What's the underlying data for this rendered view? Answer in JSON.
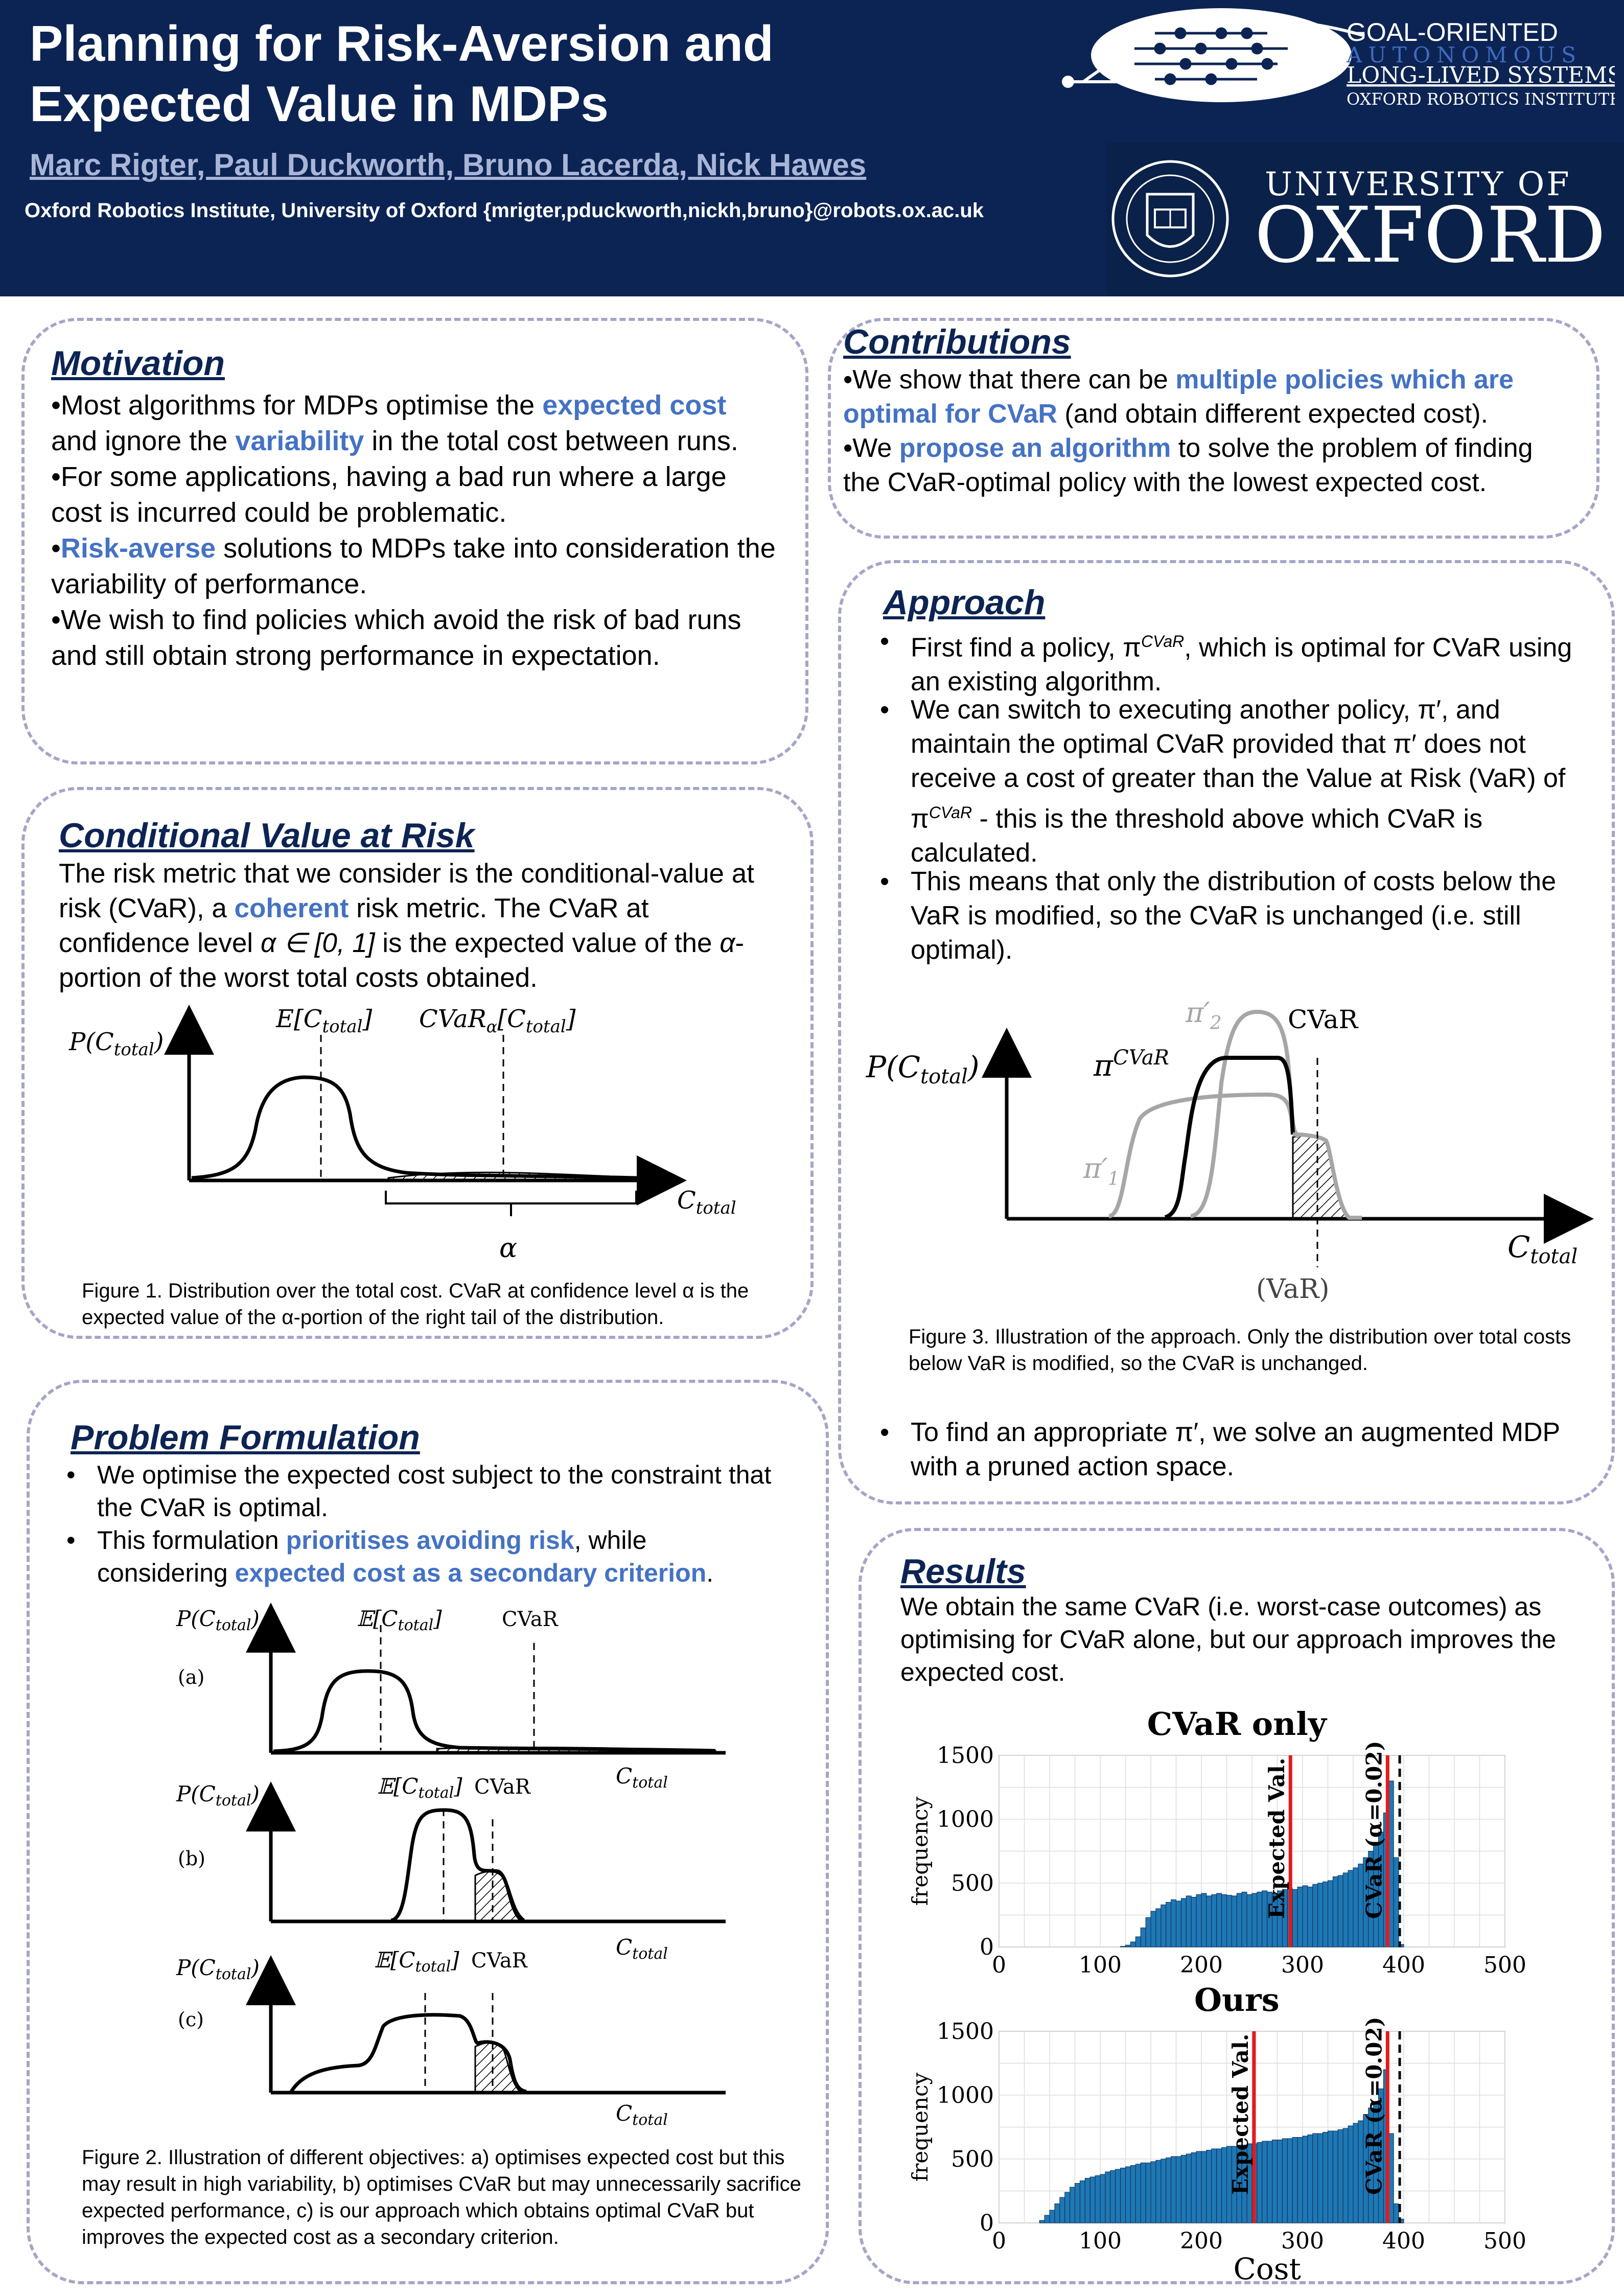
{
  "header": {
    "title": "Planning for Risk-Aversion and Expected Value in MDPs",
    "authors": "Marc Rigter, Paul Duckworth, Bruno Lacerda, Nick Hawes",
    "affiliation": "Oxford Robotics Institute, University of Oxford {mrigter,pduckworth,nickh,bruno}@robots.ox.ac.uk",
    "goal_logo": {
      "line1": "GOAL-ORIENTED",
      "line2": "AUTONOMOUS",
      "line3": "LONG-LIVED SYSTEMS",
      "line4": "OXFORD ROBOTICS INSTITUTE"
    },
    "oxford_logo": {
      "line1": "UNIVERSITY OF",
      "line2": "OXFORD"
    }
  },
  "motivation": {
    "heading": "Motivation",
    "b1": {
      "pre": "Most algorithms for MDPs optimise the ",
      "hl1": "expected cost",
      "mid": " and ignore the ",
      "hl2": "variability",
      "post": " in the total cost between runs."
    },
    "b2": "For some applications, having a bad run where a large cost is incurred could be problematic.",
    "b3": {
      "hl": "Risk-averse",
      "post": " solutions to MDPs take into consideration the variability of performance."
    },
    "b4": "We wish to find policies which avoid the risk of bad runs and still obtain strong performance in expectation."
  },
  "cvar": {
    "heading": "Conditional Value at Risk",
    "p1": "The risk metric that we consider is the conditional-value at risk (CVaR), a ",
    "hl": "coherent",
    "p2": " risk metric. The CVaR at confidence level ",
    "p3": "α ∈ [0, 1]",
    "p4": " is the expected value of the ",
    "p5": "α",
    "p6": "-portion of the worst total costs obtained.",
    "fig_ylabel": "P(C",
    "fig_ylabel_sub": "total",
    "fig_e": "E[C",
    "fig_cvar": "CVaR",
    "fig_cvar_sub": "α",
    "fig_xlabel": "C",
    "fig_alpha": "α",
    "caption": "Figure 1. Distribution over the total cost. CVaR at confidence level α is the expected value of the α-portion of the right tail of the distribution."
  },
  "problem": {
    "heading": "Problem Formulation",
    "b1": "We optimise the expected cost subject to the constraint that the CVaR is optimal.",
    "b2": {
      "pre": "This formulation ",
      "hl1": "prioritises avoiding risk",
      "mid": ", while considering ",
      "hl2": "expected cost as a secondary criterion",
      "post": "."
    },
    "fig_a": "(a)",
    "fig_b": "(b)",
    "fig_c": "(c)",
    "fig_ylabel": "P(C",
    "fig_e": "𝔼[C",
    "fig_sub": "total",
    "fig_cvar": "CVaR",
    "fig_xlabel": "C",
    "caption": "Figure 2. Illustration of different objectives: a) optimises expected cost but this may result in high variability, b) optimises CVaR but may unnecessarily sacrifice expected performance, c) is our approach which obtains optimal CVaR but improves the expected cost as a secondary criterion."
  },
  "contributions": {
    "heading": "Contributions",
    "b1": {
      "pre": "We show that there can be ",
      "hl": "multiple policies which are optimal for CVaR",
      "post": " (and obtain different expected cost)."
    },
    "b2": {
      "pre": "We ",
      "hl": "propose an algorithm",
      "post": " to solve the problem of finding the CVaR-optimal policy with the lowest expected cost."
    }
  },
  "approach": {
    "heading": "Approach",
    "b1a": "First find a policy, π",
    "b1sup": "CVaR",
    "b1b": ", which is optimal for CVaR using an existing algorithm.",
    "b2a": "We can switch to executing another policy, π′, and maintain the optimal CVaR provided that π′ does not receive a cost of greater than the Value at Risk (VaR) of π",
    "b2sup": "CVaR",
    "b2b": " - this is the threshold above which CVaR is calculated.",
    "b3": "This means that only the distribution of costs below the VaR is modified, so the CVaR is unchanged (i.e. still optimal).",
    "fig_ylabel": "P(C",
    "fig_sub": "total",
    "fig_pi2": "π′",
    "fig_pi2_sub": "2",
    "fig_pi1": "π′",
    "fig_pi1_sub": "1",
    "fig_picvar": "π",
    "fig_picvar_sup": "CVaR",
    "fig_cvar": "CVaR",
    "fig_var": "(VaR)",
    "fig_xlabel": "C",
    "caption": "Figure 3. Illustration of the approach. Only the distribution over total costs below VaR is modified, so the CVaR is unchanged.",
    "b4": "To find an appropriate π′, we solve an augmented MDP with a pruned action space."
  },
  "results": {
    "heading": "Results",
    "text": "We obtain the same CVaR (i.e. worst-case outcomes) as optimising for CVaR alone, but our approach improves the expected cost.",
    "xlabel": "Cost",
    "ylabel": "frequency",
    "label_expected": "Expected Val.",
    "label_cvar": "CVaR (α=0.02)",
    "ytick_labels": [
      "0",
      "500",
      "1000",
      "1500"
    ],
    "xtick_labels": [
      "0",
      "100",
      "200",
      "300",
      "400",
      "500"
    ]
  },
  "chart_data": [
    {
      "type": "bar",
      "title": "CVaR only",
      "xlabel": "",
      "ylabel": "frequency",
      "xlim": [
        0,
        500
      ],
      "ylim": [
        0,
        1500
      ],
      "grid": true,
      "bin_width": 5,
      "x": [
        120,
        125,
        130,
        135,
        140,
        145,
        150,
        155,
        160,
        165,
        170,
        175,
        180,
        185,
        190,
        195,
        200,
        205,
        210,
        215,
        220,
        225,
        230,
        235,
        240,
        245,
        250,
        255,
        260,
        265,
        270,
        275,
        280,
        285,
        290,
        295,
        300,
        305,
        310,
        315,
        320,
        325,
        330,
        335,
        340,
        345,
        350,
        355,
        360,
        365,
        370,
        375,
        380,
        385,
        390,
        395
      ],
      "values": [
        5,
        15,
        40,
        80,
        150,
        230,
        280,
        300,
        330,
        350,
        370,
        360,
        380,
        400,
        390,
        410,
        420,
        400,
        410,
        420,
        410,
        405,
        400,
        420,
        430,
        410,
        420,
        430,
        440,
        430,
        420,
        440,
        450,
        460,
        450,
        470,
        480,
        470,
        490,
        500,
        510,
        520,
        550,
        560,
        580,
        600,
        620,
        650,
        700,
        750,
        800,
        900,
        1050,
        1300,
        700,
        20
      ],
      "vlines": [
        {
          "name": "Expected Val.",
          "x": 288,
          "color": "#e31a1c",
          "style": "solid"
        },
        {
          "name": "CVaR (α=0.02)",
          "x": 384,
          "color": "#e31a1c",
          "style": "solid"
        },
        {
          "x": 396,
          "color": "#000000",
          "style": "dashed"
        }
      ]
    },
    {
      "type": "bar",
      "title": "Ours",
      "xlabel": "Cost",
      "ylabel": "frequency",
      "xlim": [
        0,
        500
      ],
      "ylim": [
        0,
        1500
      ],
      "grid": true,
      "bin_width": 5,
      "x": [
        40,
        45,
        50,
        55,
        60,
        65,
        70,
        75,
        80,
        85,
        90,
        95,
        100,
        105,
        110,
        115,
        120,
        125,
        130,
        135,
        140,
        145,
        150,
        155,
        160,
        165,
        170,
        175,
        180,
        185,
        190,
        195,
        200,
        205,
        210,
        215,
        220,
        225,
        230,
        235,
        240,
        245,
        250,
        255,
        260,
        265,
        270,
        275,
        280,
        285,
        290,
        295,
        300,
        305,
        310,
        315,
        320,
        325,
        330,
        335,
        340,
        345,
        350,
        355,
        360,
        365,
        370,
        375,
        380,
        385,
        390,
        395
      ],
      "values": [
        20,
        60,
        100,
        150,
        200,
        240,
        280,
        310,
        330,
        350,
        360,
        370,
        380,
        400,
        410,
        420,
        430,
        440,
        450,
        460,
        470,
        470,
        480,
        490,
        500,
        510,
        520,
        520,
        530,
        540,
        550,
        560,
        560,
        570,
        580,
        580,
        590,
        600,
        600,
        610,
        610,
        620,
        620,
        630,
        640,
        640,
        650,
        650,
        660,
        660,
        670,
        670,
        680,
        690,
        700,
        700,
        710,
        720,
        720,
        730,
        740,
        760,
        780,
        800,
        850,
        900,
        950,
        1050,
        1200,
        700,
        150,
        30
      ],
      "vlines": [
        {
          "name": "Expected Val.",
          "x": 252,
          "color": "#e31a1c",
          "style": "solid"
        },
        {
          "name": "CVaR (α=0.02)",
          "x": 384,
          "color": "#e31a1c",
          "style": "solid"
        },
        {
          "x": 396,
          "color": "#000000",
          "style": "dashed"
        }
      ]
    }
  ]
}
